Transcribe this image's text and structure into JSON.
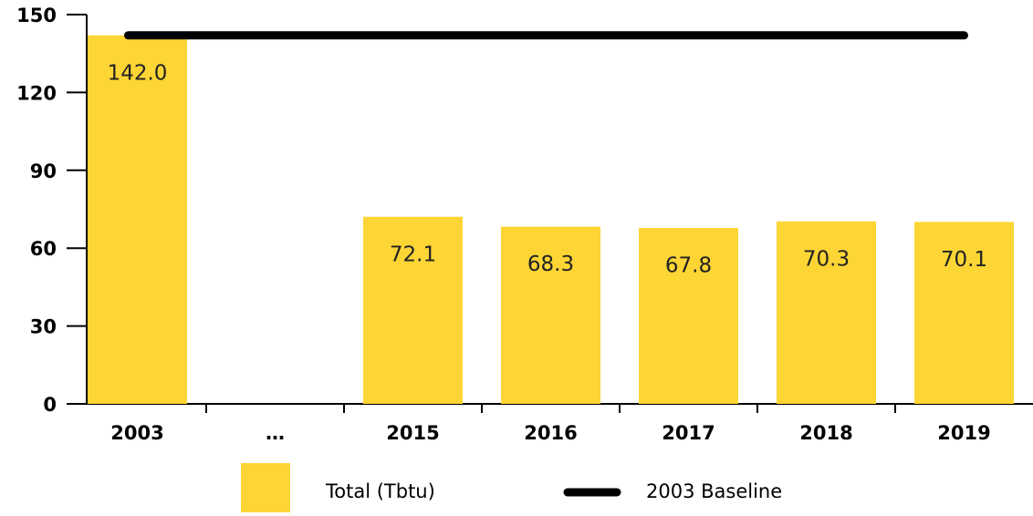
{
  "chart_data": {
    "type": "bar",
    "categories": [
      "2003",
      "…",
      "2015",
      "2016",
      "2017",
      "2018",
      "2019"
    ],
    "series": [
      {
        "name": "Total (Tbtu)",
        "color": "#fdd535",
        "values": [
          142.0,
          null,
          72.1,
          68.3,
          67.8,
          70.3,
          70.1
        ],
        "value_labels": [
          "142.0",
          null,
          "72.1",
          "68.3",
          "67.8",
          "70.3",
          "70.1"
        ]
      },
      {
        "name": "2003 Baseline",
        "color": "#000000",
        "type": "line",
        "values": [
          142,
          142,
          142,
          142,
          142,
          142,
          142
        ]
      }
    ],
    "ylim": [
      0,
      150
    ],
    "yticks": [
      0,
      30,
      60,
      90,
      120,
      150
    ],
    "legend": "bottom"
  }
}
